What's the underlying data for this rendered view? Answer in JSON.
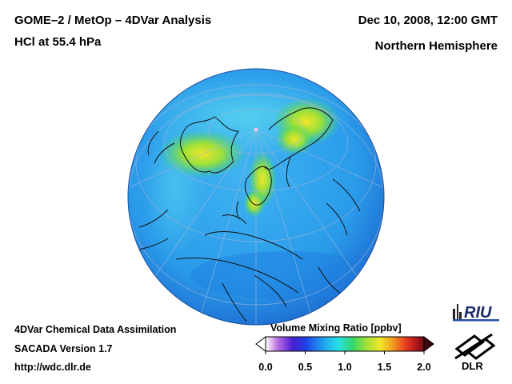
{
  "header": {
    "title_line1": "GOME–2 / MetOp – 4DVar Analysis",
    "title_line2": "HCl at 55.4 hPa",
    "date": "Dec 10, 2008, 12:00 GMT",
    "region": "Northern Hemisphere"
  },
  "footer": {
    "line1": "4DVar Chemical Data Assimilation",
    "line2": "SACADA Version 1.7",
    "line3": "http://wdc.dlr.de"
  },
  "colorbar": {
    "label": "Volume Mixing Ratio [ppbv]",
    "ticks": [
      "0.0",
      "0.5",
      "1.0",
      "1.5",
      "2.0"
    ],
    "colors": [
      "#ffffff",
      "#b36ae0",
      "#4a1fcf",
      "#1f3fe6",
      "#1f9df0",
      "#28e0e6",
      "#36d66a",
      "#9ae03a",
      "#f0e62a",
      "#f0a020",
      "#e64020",
      "#b3161c",
      "#6a0e10"
    ]
  },
  "logos": {
    "riu": "RIU",
    "dlr": "DLR"
  },
  "map": {
    "projection": "orthographic",
    "base_color": "#2a9bea",
    "limb_color": "#1e6fd2"
  }
}
